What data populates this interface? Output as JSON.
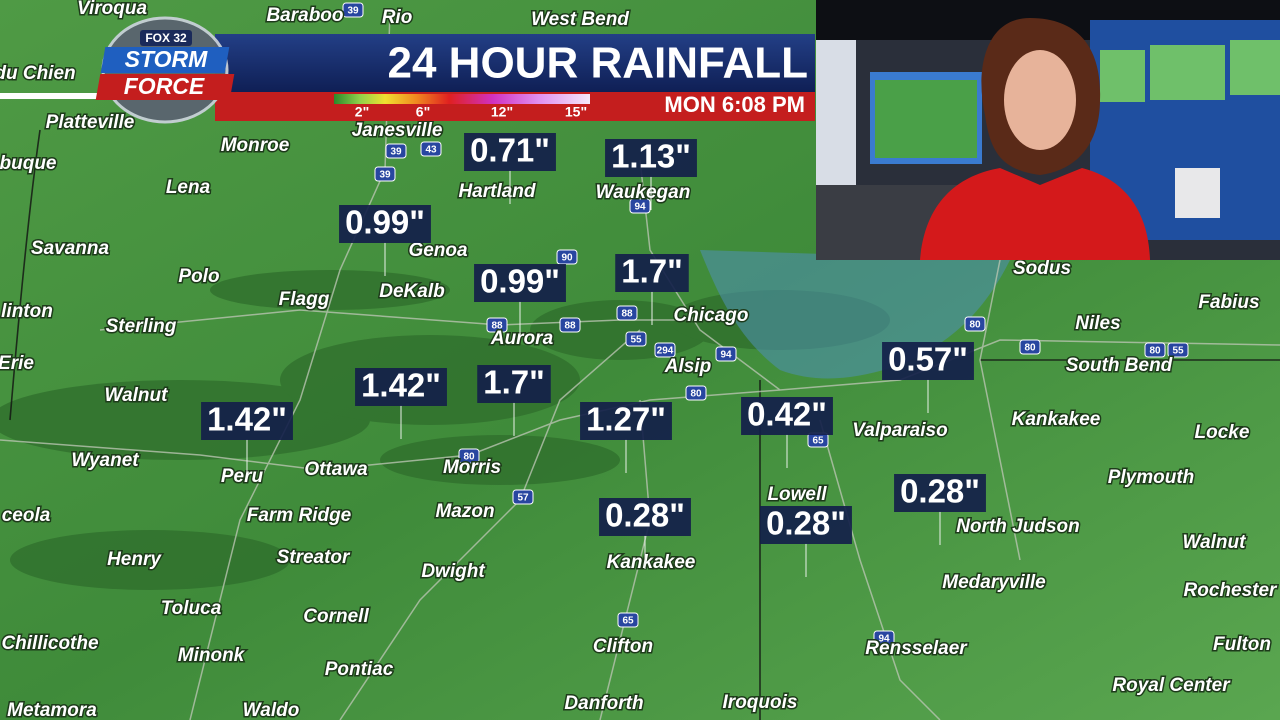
{
  "header": {
    "logo": {
      "network": "FOX 32",
      "line1": "STORM",
      "line2": "FORCE"
    },
    "title": "24 HOUR RAINFALL",
    "legend_labels": [
      "2\"",
      "6\"",
      "12\"",
      "15\""
    ],
    "timestamp": "MON 6:08 PM"
  },
  "cities": [
    "Viroqua",
    "Baraboo",
    "Rio",
    "West Bend",
    "du Chien",
    "Platteville",
    "Monroe",
    "Janesville",
    "buque",
    "Lena",
    "Hartland",
    "Waukegan",
    "Savanna",
    "Genoa",
    "Polo",
    "Flagg",
    "DeKalb",
    "linton",
    "Sterling",
    "Aurora",
    "Chicago",
    "Erie",
    "Alsip",
    "Walnut",
    "Valparaiso",
    "Kankakee",
    "Locke",
    "Wyanet",
    "Peru",
    "Ottawa",
    "Morris",
    "Lowell",
    "Plymouth",
    "Sodus",
    "Fabius",
    "Niles",
    "South Bend",
    "North Judson",
    "Walnut",
    "Mazon",
    "Farm Ridge",
    "ceola",
    "Kankakee",
    "Henry",
    "Streator",
    "Dwight",
    "Medaryville",
    "Rochester",
    "Toluca",
    "Cornell",
    "Clifton",
    "Rensselaer",
    "Fulton",
    "Chillicothe",
    "Minonk",
    "Pontiac",
    "Royal Center",
    "Metamora",
    "Waldo",
    "Danforth",
    "Iroquois"
  ],
  "highways": [
    "39",
    "39",
    "43",
    "39",
    "94",
    "90",
    "88",
    "88",
    "88",
    "55",
    "294",
    "94",
    "80",
    "80",
    "80",
    "55",
    "57",
    "65",
    "65",
    "94",
    "80",
    "80"
  ],
  "rainfall_totals": [
    "0.71\"",
    "1.13\"",
    "0.99\"",
    "0.99\"",
    "1.7\"",
    "0.57\"",
    "1.42\"",
    "1.7\"",
    "1.42\"",
    "1.27\"",
    "0.42\"",
    "0.28\"",
    "0.28\"",
    "0.28\""
  ]
}
